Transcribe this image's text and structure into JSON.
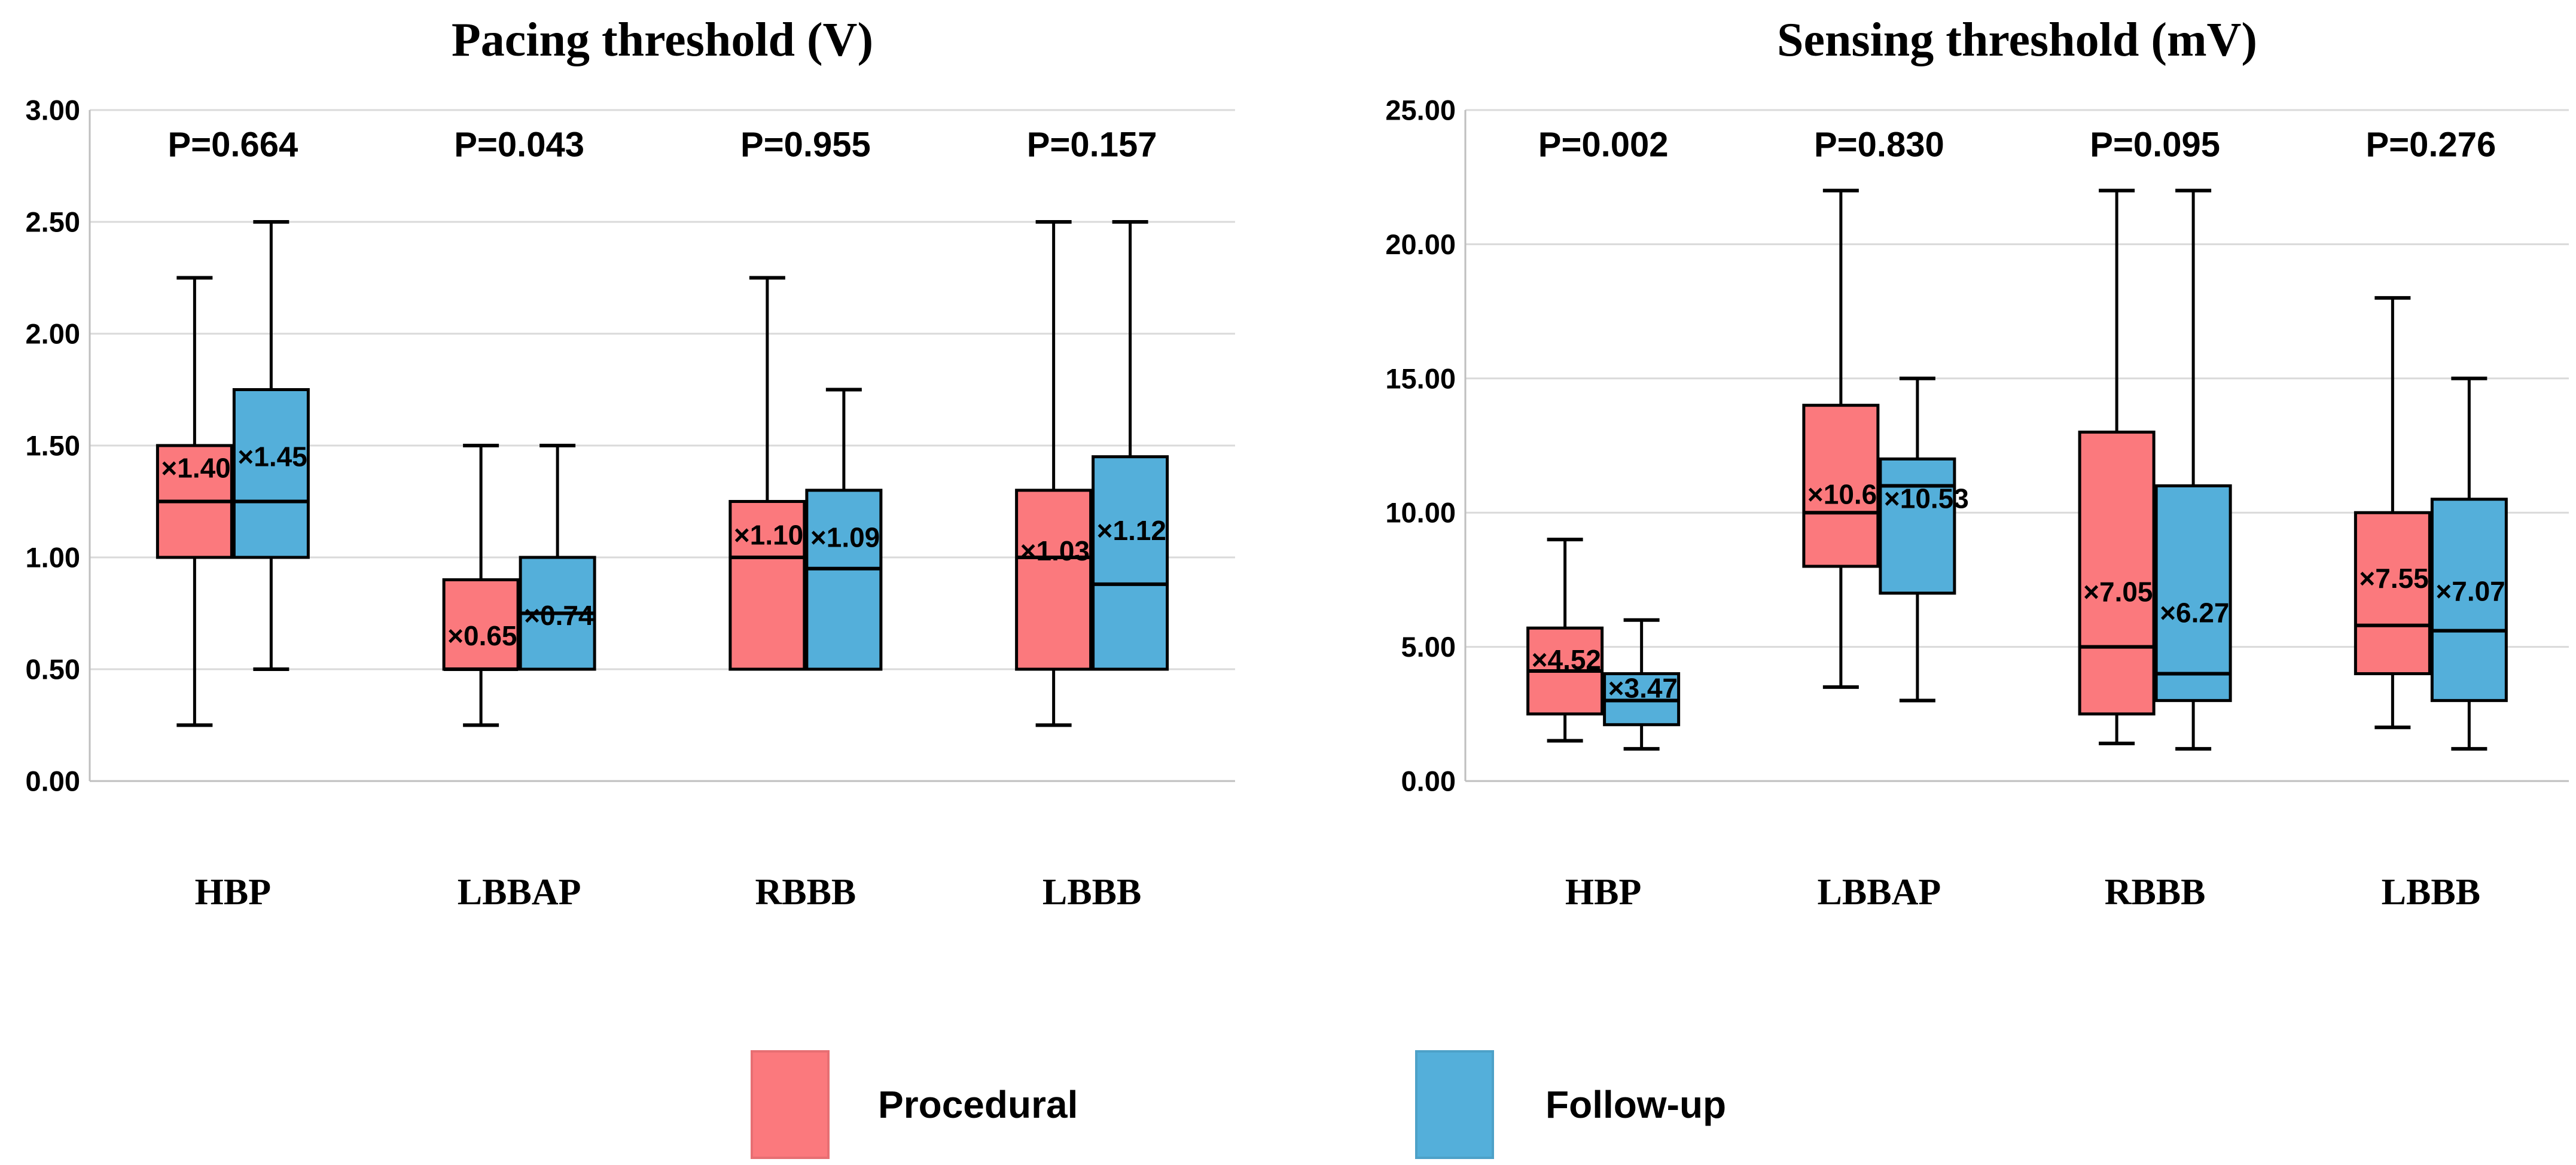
{
  "figure": {
    "background": "#FFFFFF",
    "grid_color": "#DADADA",
    "axis_color": "#BFBFBF",
    "box_border_color": "#000000"
  },
  "legend": {
    "position": "bottom",
    "items": [
      {
        "label": "Procedural",
        "color": "#FB797D"
      },
      {
        "label": "Follow-up",
        "color": "#54AFDA"
      }
    ]
  },
  "chart_data": [
    {
      "type": "boxplot",
      "title": "Pacing threshold (V)",
      "xlabel": "",
      "ylabel": "",
      "ylim": [
        0,
        3
      ],
      "grid": true,
      "mean_marker": "×",
      "yticks": [
        {
          "v": 0.0,
          "label": "0.00"
        },
        {
          "v": 0.5,
          "label": "0.50"
        },
        {
          "v": 1.0,
          "label": "1.00"
        },
        {
          "v": 1.5,
          "label": "1.50"
        },
        {
          "v": 2.0,
          "label": "2.00"
        },
        {
          "v": 2.5,
          "label": "2.50"
        },
        {
          "v": 3.0,
          "label": "3.00"
        }
      ],
      "categories": [
        "HBP",
        "LBBAP",
        "RBBB",
        "LBBB"
      ],
      "p_values": [
        "P=0.664",
        "P=0.043",
        "P=0.955",
        "P=0.157"
      ],
      "series": [
        {
          "name": "Procedural",
          "color": "#FB797D",
          "boxes": [
            {
              "cat": "HBP",
              "min": 0.25,
              "q1": 1.0,
              "median": 1.25,
              "q3": 1.5,
              "max": 2.25,
              "mean": 1.4,
              "mean_label": "1.40"
            },
            {
              "cat": "LBBAP",
              "min": 0.25,
              "q1": 0.5,
              "median": 0.5,
              "q3": 0.9,
              "max": 1.5,
              "mean": 0.65,
              "mean_label": "0.65"
            },
            {
              "cat": "RBBB",
              "min": 0.5,
              "q1": 0.5,
              "median": 1.0,
              "q3": 1.25,
              "max": 2.25,
              "mean": 1.1,
              "mean_label": "1.10"
            },
            {
              "cat": "LBBB",
              "min": 0.25,
              "q1": 0.5,
              "median": 1.0,
              "q3": 1.3,
              "max": 2.5,
              "mean": 1.03,
              "mean_label": "1.03"
            }
          ]
        },
        {
          "name": "Follow-up",
          "color": "#54AFDA",
          "boxes": [
            {
              "cat": "HBP",
              "min": 0.5,
              "q1": 1.0,
              "median": 1.25,
              "q3": 1.75,
              "max": 2.5,
              "mean": 1.45,
              "mean_label": "1.45"
            },
            {
              "cat": "LBBAP",
              "min": 0.5,
              "q1": 0.5,
              "median": 0.75,
              "q3": 1.0,
              "max": 1.5,
              "mean": 0.74,
              "mean_label": "0.74"
            },
            {
              "cat": "RBBB",
              "min": 0.5,
              "q1": 0.5,
              "median": 0.95,
              "q3": 1.3,
              "max": 1.75,
              "mean": 1.09,
              "mean_label": "1.09"
            },
            {
              "cat": "LBBB",
              "min": 0.5,
              "q1": 0.5,
              "median": 0.88,
              "q3": 1.45,
              "max": 2.5,
              "mean": 1.12,
              "mean_label": "1.12"
            }
          ]
        }
      ]
    },
    {
      "type": "boxplot",
      "title": "Sensing threshold (mV)",
      "xlabel": "",
      "ylabel": "",
      "ylim": [
        0,
        25
      ],
      "grid": true,
      "mean_marker": "×",
      "yticks": [
        {
          "v": 0,
          "label": "0.00"
        },
        {
          "v": 5,
          "label": "5.00"
        },
        {
          "v": 10,
          "label": "10.00"
        },
        {
          "v": 15,
          "label": "15.00"
        },
        {
          "v": 20,
          "label": "20.00"
        },
        {
          "v": 25,
          "label": "25.00"
        }
      ],
      "categories": [
        "HBP",
        "LBBAP",
        "RBBB",
        "LBBB"
      ],
      "p_values": [
        "P=0.002",
        "P=0.830",
        "P=0.095",
        "P=0.276"
      ],
      "series": [
        {
          "name": "Procedural",
          "color": "#FB797D",
          "boxes": [
            {
              "cat": "HBP",
              "min": 1.5,
              "q1": 2.5,
              "median": 4.1,
              "q3": 5.7,
              "max": 9.0,
              "mean": 4.52,
              "mean_label": "4.52"
            },
            {
              "cat": "LBBAP",
              "min": 3.5,
              "q1": 8.0,
              "median": 10.0,
              "q3": 14.0,
              "max": 22.0,
              "mean": 10.68,
              "mean_label": "10.68"
            },
            {
              "cat": "RBBB",
              "min": 1.4,
              "q1": 2.5,
              "median": 5.0,
              "q3": 13.0,
              "max": 22.0,
              "mean": 7.05,
              "mean_label": "7.05"
            },
            {
              "cat": "LBBB",
              "min": 2.0,
              "q1": 4.0,
              "median": 5.8,
              "q3": 10.0,
              "max": 18.0,
              "mean": 7.55,
              "mean_label": "7.55"
            }
          ]
        },
        {
          "name": "Follow-up",
          "color": "#54AFDA",
          "boxes": [
            {
              "cat": "HBP",
              "min": 1.2,
              "q1": 2.1,
              "median": 3.0,
              "q3": 4.0,
              "max": 6.0,
              "mean": 3.47,
              "mean_label": "3.47"
            },
            {
              "cat": "LBBAP",
              "min": 3.0,
              "q1": 7.0,
              "median": 11.0,
              "q3": 12.0,
              "max": 15.0,
              "mean": 10.53,
              "mean_label": "10.53"
            },
            {
              "cat": "RBBB",
              "min": 1.2,
              "q1": 3.0,
              "median": 4.0,
              "q3": 11.0,
              "max": 22.0,
              "mean": 6.27,
              "mean_label": "6.27"
            },
            {
              "cat": "LBBB",
              "min": 1.2,
              "q1": 3.0,
              "median": 5.6,
              "q3": 10.5,
              "max": 15.0,
              "mean": 7.07,
              "mean_label": "7.07"
            }
          ]
        }
      ]
    }
  ]
}
